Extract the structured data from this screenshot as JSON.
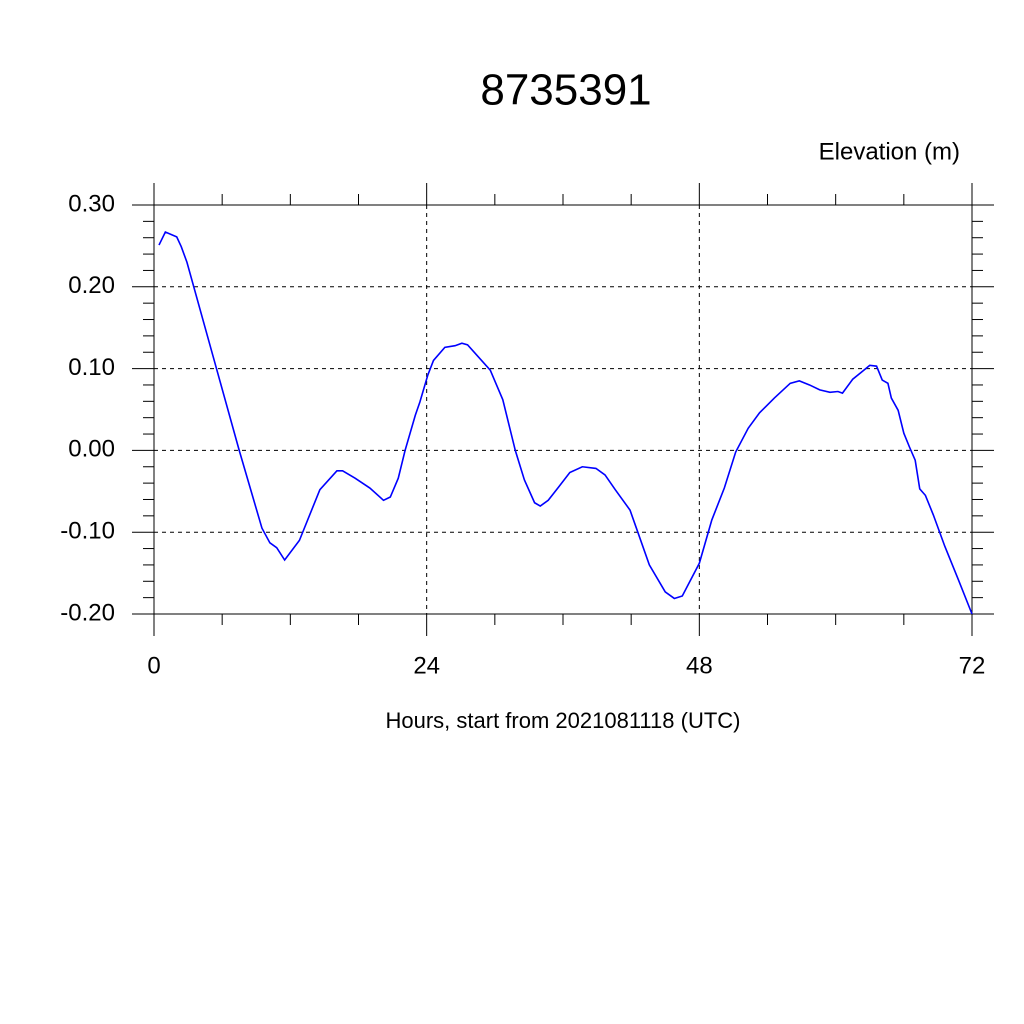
{
  "chart_data": {
    "type": "line",
    "title": "8735391",
    "subtitle": "Elevation (m)",
    "x_label": "Hours, start from 2021081118 (UTC)",
    "xlim": [
      0,
      72
    ],
    "xticks": [
      0,
      24,
      48,
      72
    ],
    "ylim": [
      -0.2,
      0.3
    ],
    "yticks": [
      {
        "value": 0.3,
        "label": "0.30"
      },
      {
        "value": 0.2,
        "label": "0.20"
      },
      {
        "value": 0.1,
        "label": "0.10"
      },
      {
        "value": 0,
        "label": "0.00"
      },
      {
        "value": -0.1,
        "label": "-0.10"
      },
      {
        "value": -0.2,
        "label": "-0.20"
      }
    ],
    "grid": true,
    "series": [
      {
        "name": "Elevation",
        "color": "#0000ff",
        "x": [
          0.44,
          1,
          2,
          2.4,
          2.9,
          5.2,
          7.5,
          9.5,
          10.2,
          10.8,
          11.5,
          12.8,
          14.6,
          16.1,
          16.6,
          17.7,
          19,
          20.2,
          20.8,
          21.5,
          22.1,
          23,
          23.4,
          24.1,
          24.6,
          25.6,
          26.5,
          27.1,
          27.6,
          29.6,
          30.7,
          31.8,
          32.6,
          33.5,
          34,
          34.7,
          35.6,
          36.6,
          37.7,
          38.9,
          39.7,
          40.6,
          41.9,
          43.6,
          45,
          45.8,
          46.5,
          47.1,
          48,
          49.1,
          50.2,
          51.2,
          52.3,
          53.3,
          54.6,
          56,
          56.8,
          57.7,
          58.6,
          59.5,
          60.2,
          60.6,
          61.5,
          62.3,
          63,
          63.6,
          64.1,
          64.6,
          64.9,
          65.5,
          66,
          66.5,
          67,
          67.4,
          67.9,
          68.6,
          69.6,
          70.8,
          72
        ],
        "values": [
          0.251,
          0.267,
          0.261,
          0.249,
          0.23,
          0.115,
          0.0,
          -0.095,
          -0.113,
          -0.119,
          -0.134,
          -0.11,
          -0.048,
          -0.025,
          -0.025,
          -0.034,
          -0.046,
          -0.061,
          -0.057,
          -0.034,
          0.0,
          0.043,
          0.059,
          0.092,
          0.11,
          0.126,
          0.128,
          0.131,
          0.129,
          0.098,
          0.062,
          0.0,
          -0.036,
          -0.064,
          -0.068,
          -0.061,
          -0.045,
          -0.027,
          -0.02,
          -0.022,
          -0.03,
          -0.048,
          -0.073,
          -0.14,
          -0.173,
          -0.181,
          -0.178,
          -0.162,
          -0.138,
          -0.085,
          -0.046,
          -0.002,
          0.027,
          0.046,
          0.064,
          0.082,
          0.085,
          0.08,
          0.074,
          0.071,
          0.072,
          0.07,
          0.087,
          0.096,
          0.104,
          0.103,
          0.086,
          0.082,
          0.064,
          0.049,
          0.021,
          0.004,
          -0.012,
          -0.047,
          -0.055,
          -0.079,
          -0.117,
          -0.158,
          -0.2
        ]
      }
    ]
  }
}
